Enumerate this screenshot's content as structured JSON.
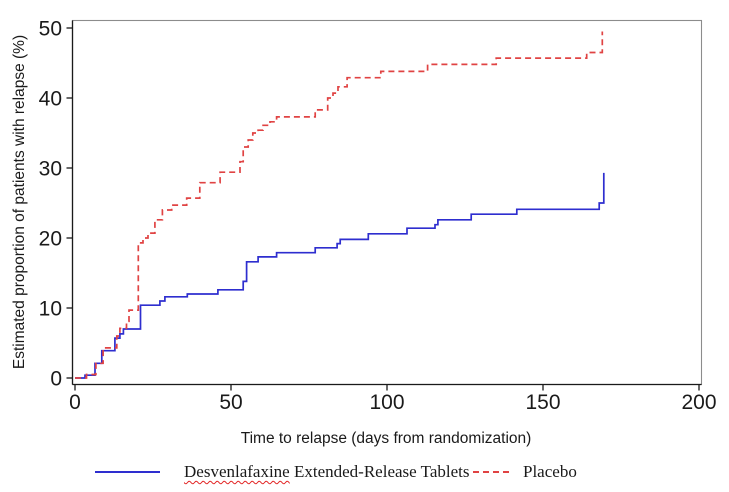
{
  "figure": {
    "background": "#ffffff",
    "frame_color": "#8c8c8c",
    "axis_color": "#1a1a1a",
    "text_color": "#1a1a1a"
  },
  "chart_data": {
    "type": "line",
    "subtype": "kaplan-meier-step-curve",
    "title": "",
    "xlabel": "Time to relapse (days from randomization)",
    "ylabel": "Estimated proportion of patients with relapse (%)",
    "xlim": [
      0,
      200
    ],
    "ylim": [
      0,
      50
    ],
    "x_ticks": [
      0,
      50,
      100,
      150,
      200
    ],
    "y_ticks": [
      0,
      10,
      20,
      30,
      40,
      50
    ],
    "grid": false,
    "legend_position": "bottom",
    "series": [
      {
        "name": "Desvenlafaxine Extended-Release Tablets",
        "color": "#2e2ecf",
        "line_style": "solid",
        "step": true,
        "points": [
          [
            0,
            0
          ],
          [
            3.2,
            0.4
          ],
          [
            6.4,
            2.1
          ],
          [
            8.6,
            3.9
          ],
          [
            12.8,
            5.7
          ],
          [
            14.4,
            6.3
          ],
          [
            15.5,
            7.0
          ],
          [
            21,
            10.4
          ],
          [
            27.2,
            11.0
          ],
          [
            28.8,
            11.6
          ],
          [
            36,
            12.0
          ],
          [
            45.8,
            12.6
          ],
          [
            53.9,
            13.8
          ],
          [
            55,
            16.6
          ],
          [
            58.7,
            17.3
          ],
          [
            64.6,
            17.9
          ],
          [
            77,
            18.6
          ],
          [
            84,
            19.2
          ],
          [
            85,
            19.8
          ],
          [
            94,
            20.6
          ],
          [
            106.4,
            21.4
          ],
          [
            115.4,
            21.9
          ],
          [
            116.3,
            22.6
          ],
          [
            127,
            23.4
          ],
          [
            141.6,
            24.1
          ],
          [
            168,
            25.0
          ],
          [
            169.5,
            29.3
          ]
        ]
      },
      {
        "name": "Placebo",
        "color": "#e04343",
        "line_style": "dashed",
        "step": true,
        "points": [
          [
            0,
            0
          ],
          [
            3.7,
            0.5
          ],
          [
            6.7,
            2.1
          ],
          [
            9,
            4.3
          ],
          [
            13.4,
            6.0
          ],
          [
            14.4,
            7.1
          ],
          [
            16.5,
            8.1
          ],
          [
            17.3,
            9.7
          ],
          [
            20.3,
            19.3
          ],
          [
            21.8,
            20.0
          ],
          [
            23.4,
            20.7
          ],
          [
            25.6,
            22.6
          ],
          [
            28,
            24.0
          ],
          [
            31,
            24.7
          ],
          [
            35.8,
            25.7
          ],
          [
            40,
            27.9
          ],
          [
            46.5,
            29.4
          ],
          [
            52.9,
            30.9
          ],
          [
            53.9,
            33.0
          ],
          [
            55.5,
            34.0
          ],
          [
            57,
            35.0
          ],
          [
            58.7,
            35.4
          ],
          [
            60.3,
            36.1
          ],
          [
            62.5,
            36.6
          ],
          [
            64.6,
            37.3
          ],
          [
            77,
            38.3
          ],
          [
            81,
            40.0
          ],
          [
            82.7,
            40.7
          ],
          [
            84.3,
            41.6
          ],
          [
            87.2,
            42.9
          ],
          [
            98,
            43.8
          ],
          [
            113,
            44.8
          ],
          [
            135,
            45.7
          ],
          [
            164,
            46.5
          ],
          [
            169,
            49.5
          ]
        ]
      }
    ]
  },
  "axes": {
    "x_tick_labels": [
      "0",
      "50",
      "100",
      "150",
      "200"
    ],
    "y_tick_labels": [
      "0",
      "10",
      "20",
      "30",
      "40",
      "50"
    ]
  },
  "legend": {
    "desvenlafaxine": {
      "underlined_word": "Desvenlafaxine",
      "rest": "Extended-Release Tablets"
    },
    "placebo": {
      "label": "Placebo"
    }
  }
}
